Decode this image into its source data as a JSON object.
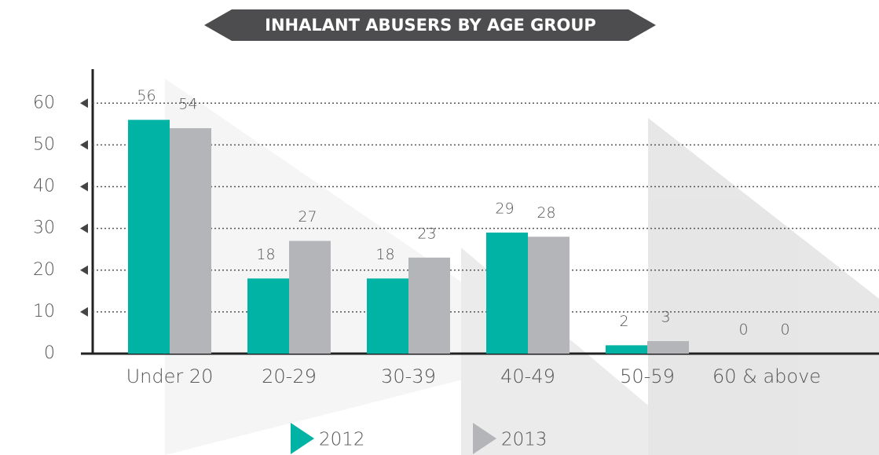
{
  "chart_data": {
    "type": "bar",
    "title": "INHALANT ABUSERS BY AGE GROUP",
    "categories": [
      "Under 20",
      "20-29",
      "30-39",
      "40-49",
      "50-59",
      "60 & above"
    ],
    "series": [
      {
        "name": "2012",
        "color": "#00b3a4",
        "values": [
          56,
          18,
          18,
          29,
          2,
          0
        ]
      },
      {
        "name": "2013",
        "color": "#b3b5b8",
        "values": [
          54,
          27,
          23,
          28,
          3,
          0
        ]
      }
    ],
    "ylim": [
      0,
      64
    ],
    "yticks": [
      0,
      10,
      20,
      30,
      40,
      50,
      60
    ],
    "grid": true
  }
}
